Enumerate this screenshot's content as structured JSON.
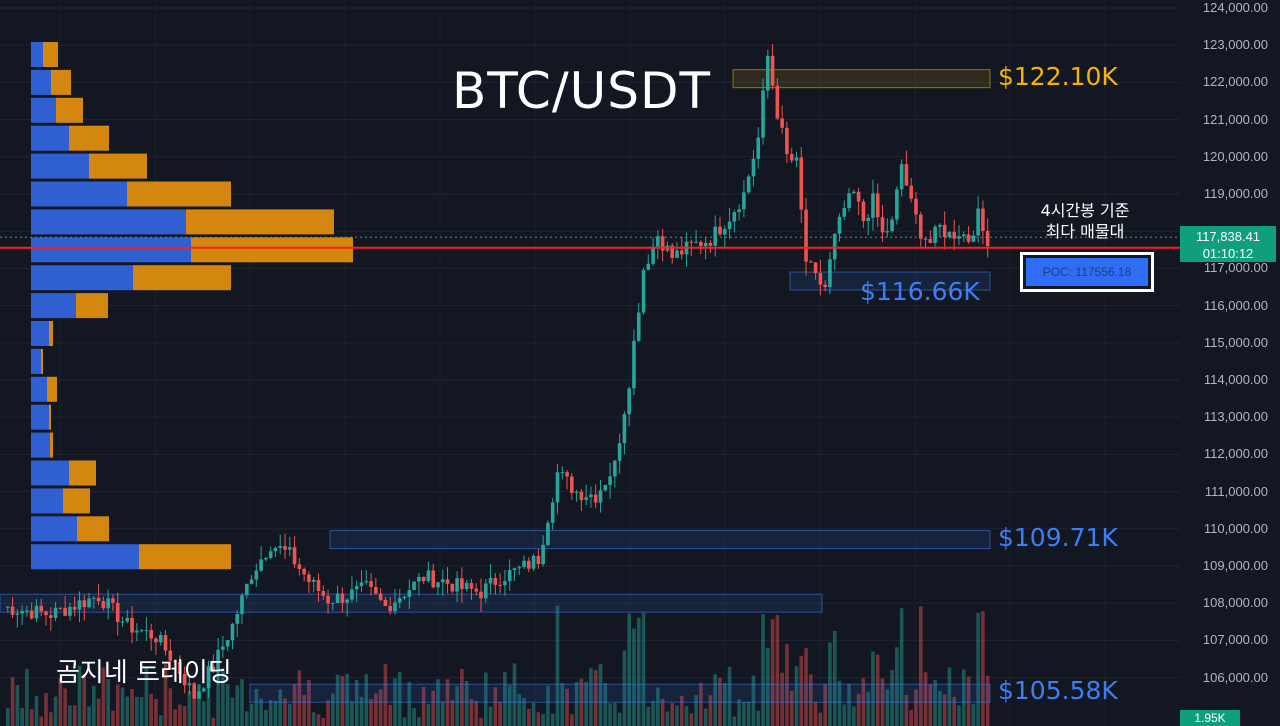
{
  "chart_data": {
    "type": "candlestick",
    "title": "BTC/USDT",
    "ylim": [
      104700,
      124200
    ],
    "y_ticks": [
      "124,000.00",
      "123,000.00",
      "122,000.00",
      "121,000.00",
      "120,000.00",
      "119,000.00",
      "118,000.00",
      "117,000.00",
      "116,000.00",
      "115,000.00",
      "114,000.00",
      "113,000.00",
      "112,000.00",
      "111,000.00",
      "110,000.00",
      "109,000.00",
      "108,000.00",
      "107,000.00",
      "106,000.00"
    ],
    "current_price": "117,838.41",
    "countdown": "01:10:12",
    "volume_tag": "1.95K",
    "annotation": [
      "4시간봉 기준",
      "최다 매물대"
    ],
    "poc_label": "POC: 117556.18",
    "poc_value": 117556.18,
    "levels": [
      {
        "label": "$122.10K",
        "value": 122100,
        "color": "#f5b400"
      },
      {
        "label": "$116.66K",
        "value": 116660,
        "color": "#3d7ef5"
      },
      {
        "label": "$109.71K",
        "value": 109710,
        "color": "#3d7ef5"
      },
      {
        "label": "$105.58K",
        "value": 105580,
        "color": "#3d7ef5"
      }
    ],
    "branding": "곰지네 트레이딩",
    "colors": {
      "up": "#26a69a",
      "down": "#ef5350",
      "poc_line": "#ff1e1e",
      "buy_volume": "#2f5fd0",
      "sell_volume": "#d4870f"
    },
    "close_path": [
      [
        0,
        107900
      ],
      [
        10,
        107700
      ],
      [
        20,
        108200
      ],
      [
        26,
        107400
      ],
      [
        32,
        107100
      ],
      [
        36,
        106400
      ],
      [
        40,
        105500
      ],
      [
        44,
        106300
      ],
      [
        48,
        107400
      ],
      [
        52,
        108800
      ],
      [
        56,
        109600
      ],
      [
        60,
        109300
      ],
      [
        64,
        108600
      ],
      [
        68,
        108100
      ],
      [
        72,
        108200
      ],
      [
        76,
        108400
      ],
      [
        80,
        107900
      ],
      [
        84,
        108300
      ],
      [
        88,
        108700
      ],
      [
        92,
        108600
      ],
      [
        96,
        108400
      ],
      [
        100,
        108300
      ],
      [
        104,
        108700
      ],
      [
        108,
        108900
      ],
      [
        112,
        109200
      ],
      [
        116,
        111500
      ],
      [
        120,
        111000
      ],
      [
        124,
        110900
      ],
      [
        128,
        111700
      ],
      [
        131,
        114000
      ],
      [
        134,
        117000
      ],
      [
        137,
        117900
      ],
      [
        140,
        117300
      ],
      [
        144,
        117600
      ],
      [
        148,
        117800
      ],
      [
        152,
        118400
      ],
      [
        155,
        119000
      ],
      [
        158,
        120500
      ],
      [
        160,
        122700
      ],
      [
        162,
        121200
      ],
      [
        164,
        120000
      ],
      [
        166,
        119800
      ],
      [
        168,
        117200
      ],
      [
        170,
        116700
      ],
      [
        172,
        116500
      ],
      [
        174,
        117800
      ],
      [
        176,
        118600
      ],
      [
        178,
        119000
      ],
      [
        180,
        118300
      ],
      [
        182,
        118800
      ],
      [
        184,
        117900
      ],
      [
        186,
        118200
      ],
      [
        188,
        119800
      ],
      [
        190,
        118700
      ],
      [
        192,
        118000
      ],
      [
        194,
        117700
      ],
      [
        196,
        118100
      ],
      [
        198,
        117900
      ],
      [
        200,
        118000
      ],
      [
        202,
        117800
      ],
      [
        204,
        118400
      ],
      [
        206,
        117600
      ]
    ],
    "profile": [
      {
        "price": 122750,
        "buy": 12,
        "sell": 15
      },
      {
        "price": 122000,
        "buy": 20,
        "sell": 20
      },
      {
        "price": 121250,
        "buy": 25,
        "sell": 27
      },
      {
        "price": 120500,
        "buy": 38,
        "sell": 40
      },
      {
        "price": 119750,
        "buy": 58,
        "sell": 58
      },
      {
        "price": 119000,
        "buy": 96,
        "sell": 104
      },
      {
        "price": 118250,
        "buy": 155,
        "sell": 148
      },
      {
        "price": 117500,
        "buy": 160,
        "sell": 162
      },
      {
        "price": 116750,
        "buy": 102,
        "sell": 98
      },
      {
        "price": 116000,
        "buy": 45,
        "sell": 32
      },
      {
        "price": 115250,
        "buy": 18,
        "sell": 4
      },
      {
        "price": 114500,
        "buy": 10,
        "sell": 2
      },
      {
        "price": 113750,
        "buy": 16,
        "sell": 10
      },
      {
        "price": 113000,
        "buy": 18,
        "sell": 2
      },
      {
        "price": 112250,
        "buy": 19,
        "sell": 3
      },
      {
        "price": 111500,
        "buy": 38,
        "sell": 27
      },
      {
        "price": 110750,
        "buy": 32,
        "sell": 27
      },
      {
        "price": 110000,
        "buy": 46,
        "sell": 32
      },
      {
        "price": 109250,
        "buy": 108,
        "sell": 92
      }
    ]
  }
}
